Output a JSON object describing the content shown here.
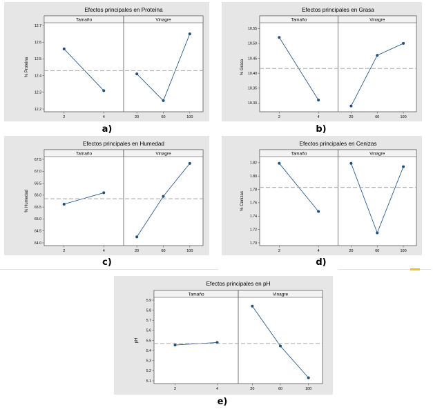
{
  "captions": [
    "a)",
    "b)",
    "c)",
    "d)",
    "e)"
  ],
  "colors": {
    "panel_bg": "#e6e6e6",
    "plot_bg": "#ffffff",
    "line": "#2a5a8a",
    "point": "#1f4e79",
    "mean_line": "#9a9a9a",
    "strip_bg": "#f3f3f3"
  },
  "chart_data": [
    {
      "type": "line",
      "title": "Efectos principales en Proteína",
      "ylabel": "% Proteina",
      "yticks": [
        "12.7",
        "12.6",
        "12.5",
        "12.4",
        "12.3",
        "12.2"
      ],
      "ylim": [
        12.2,
        12.7
      ],
      "mean": 12.43,
      "factors": [
        {
          "name": "Tamaño",
          "x": [
            "2",
            "4"
          ],
          "values": [
            12.56,
            12.31
          ]
        },
        {
          "name": "Vinagre",
          "x": [
            "20",
            "60",
            "100"
          ],
          "values": [
            12.41,
            12.25,
            12.65
          ]
        }
      ]
    },
    {
      "type": "line",
      "title": "Efectos principales en Grasa",
      "ylabel": "% Grasa",
      "yticks": [
        "10.55",
        "10.50",
        "10.45",
        "10.40",
        "10.35",
        "10.30"
      ],
      "ylim": [
        10.28,
        10.56
      ],
      "mean": 10.416,
      "factors": [
        {
          "name": "Tamaño",
          "x": [
            "2",
            "4"
          ],
          "values": [
            10.52,
            10.31
          ]
        },
        {
          "name": "Vinagre",
          "x": [
            "20",
            "60",
            "100"
          ],
          "values": [
            10.29,
            10.46,
            10.5
          ]
        }
      ]
    },
    {
      "type": "line",
      "title": "Efectos principales en Humedad",
      "ylabel": "% Humedad",
      "yticks": [
        "67.5",
        "67.0",
        "66.5",
        "66.0",
        "65.5",
        "65.0",
        "64.5",
        "64.0"
      ],
      "ylim": [
        64.0,
        67.5
      ],
      "mean": 65.85,
      "factors": [
        {
          "name": "Tamaño",
          "x": [
            "2",
            "4"
          ],
          "values": [
            65.62,
            66.1
          ]
        },
        {
          "name": "Vinagre",
          "x": [
            "20",
            "60",
            "100"
          ],
          "values": [
            64.25,
            65.95,
            67.33
          ]
        }
      ]
    },
    {
      "type": "line",
      "title": "Efectos principales en Cenizas",
      "ylabel": "% Cenizas",
      "yticks": [
        "1.82",
        "1.80",
        "1.78",
        "1.76",
        "1.74",
        "1.72",
        "1.70"
      ],
      "ylim": [
        1.7,
        1.825
      ],
      "mean": 1.783,
      "factors": [
        {
          "name": "Tamaño",
          "x": [
            "2",
            "4"
          ],
          "values": [
            1.819,
            1.747
          ]
        },
        {
          "name": "Vinagre",
          "x": [
            "20",
            "60",
            "100"
          ],
          "values": [
            1.819,
            1.715,
            1.814
          ]
        }
      ]
    },
    {
      "type": "line",
      "title": "Efectos principales en pH",
      "ylabel": "pH",
      "yticks": [
        "5.9",
        "5.8",
        "5.7",
        "5.6",
        "5.5",
        "5.4",
        "5.3",
        "5.2",
        "5.1"
      ],
      "ylim": [
        5.1,
        5.9
      ],
      "mean": 5.47,
      "factors": [
        {
          "name": "Tamaño",
          "x": [
            "2",
            "4"
          ],
          "values": [
            5.455,
            5.48
          ]
        },
        {
          "name": "Vinagre",
          "x": [
            "20",
            "60",
            "100"
          ],
          "values": [
            5.84,
            5.445,
            5.13
          ]
        }
      ]
    }
  ]
}
